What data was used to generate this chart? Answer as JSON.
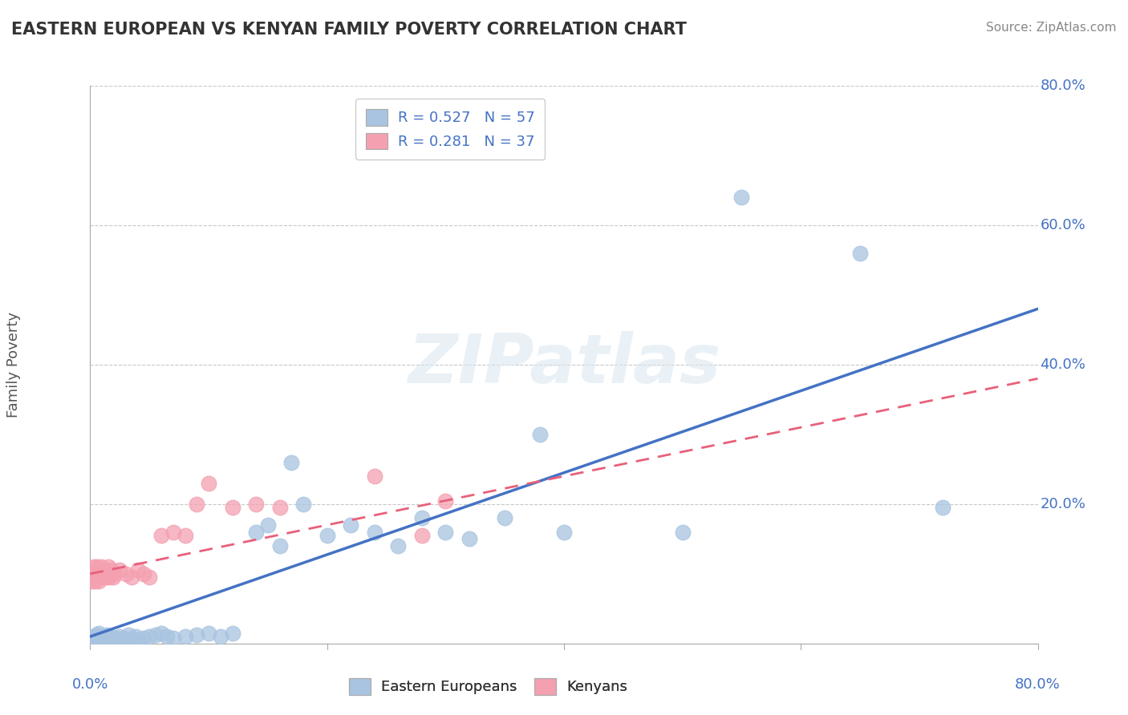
{
  "title": "EASTERN EUROPEAN VS KENYAN FAMILY POVERTY CORRELATION CHART",
  "source": "Source: ZipAtlas.com",
  "ylabel": "Family Poverty",
  "xlim": [
    0.0,
    0.8
  ],
  "ylim": [
    0.0,
    0.8
  ],
  "ytick_vals": [
    0.0,
    0.2,
    0.4,
    0.6,
    0.8
  ],
  "ytick_labels": [
    "",
    "20.0%",
    "40.0%",
    "60.0%",
    "80.0%"
  ],
  "xtick_labels": [
    "0.0%",
    "80.0%"
  ],
  "watermark": "ZIPatlas",
  "eastern_european_color": "#a8c4e0",
  "kenyan_color": "#f4a0b0",
  "line_blue": "#4472c4",
  "line_pink": "#e8607a",
  "ee_label": "R = 0.527   N = 57",
  "k_label": "R = 0.281   N = 37",
  "bottom_ee_label": "Eastern Europeans",
  "bottom_k_label": "Kenyans",
  "ee_x": [
    0.002,
    0.003,
    0.004,
    0.005,
    0.006,
    0.007,
    0.008,
    0.009,
    0.01,
    0.011,
    0.012,
    0.013,
    0.014,
    0.015,
    0.016,
    0.017,
    0.018,
    0.019,
    0.02,
    0.022,
    0.025,
    0.028,
    0.03,
    0.032,
    0.035,
    0.038,
    0.04,
    0.045,
    0.05,
    0.055,
    0.06,
    0.065,
    0.07,
    0.08,
    0.09,
    0.1,
    0.11,
    0.12,
    0.14,
    0.15,
    0.16,
    0.17,
    0.18,
    0.2,
    0.22,
    0.24,
    0.26,
    0.28,
    0.3,
    0.32,
    0.35,
    0.38,
    0.4,
    0.5,
    0.55,
    0.65,
    0.72
  ],
  "ee_y": [
    0.005,
    0.01,
    0.008,
    0.012,
    0.006,
    0.015,
    0.007,
    0.01,
    0.005,
    0.008,
    0.01,
    0.007,
    0.012,
    0.005,
    0.008,
    0.004,
    0.006,
    0.009,
    0.003,
    0.007,
    0.01,
    0.008,
    0.005,
    0.012,
    0.007,
    0.01,
    0.005,
    0.008,
    0.01,
    0.012,
    0.015,
    0.01,
    0.008,
    0.01,
    0.012,
    0.015,
    0.01,
    0.015,
    0.16,
    0.17,
    0.14,
    0.26,
    0.2,
    0.155,
    0.17,
    0.16,
    0.14,
    0.18,
    0.16,
    0.15,
    0.18,
    0.3,
    0.16,
    0.16,
    0.64,
    0.56,
    0.195
  ],
  "k_x": [
    0.001,
    0.002,
    0.003,
    0.004,
    0.005,
    0.006,
    0.007,
    0.008,
    0.009,
    0.01,
    0.011,
    0.012,
    0.013,
    0.014,
    0.015,
    0.016,
    0.017,
    0.018,
    0.019,
    0.02,
    0.025,
    0.03,
    0.035,
    0.04,
    0.045,
    0.05,
    0.06,
    0.07,
    0.08,
    0.09,
    0.1,
    0.12,
    0.14,
    0.16,
    0.24,
    0.28,
    0.3
  ],
  "k_y": [
    0.09,
    0.1,
    0.11,
    0.09,
    0.1,
    0.11,
    0.09,
    0.1,
    0.11,
    0.095,
    0.1,
    0.105,
    0.095,
    0.1,
    0.11,
    0.095,
    0.1,
    0.105,
    0.095,
    0.1,
    0.105,
    0.1,
    0.095,
    0.105,
    0.1,
    0.095,
    0.155,
    0.16,
    0.155,
    0.2,
    0.23,
    0.195,
    0.2,
    0.195,
    0.24,
    0.155,
    0.205
  ]
}
